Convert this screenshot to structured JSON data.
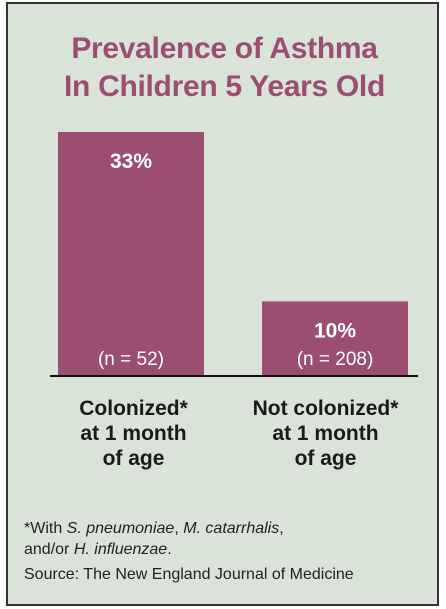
{
  "title_lines": [
    "Prevalence of Asthma",
    "In Children 5 Years Old"
  ],
  "chart_data": {
    "type": "bar",
    "title": "Prevalence of Asthma In Children 5 Years Old",
    "categories": [
      "Colonized* at 1 month of age",
      "Not colonized* at 1 month of age"
    ],
    "category_label_lines": [
      [
        "Colonized*",
        "at 1 month",
        "of age"
      ],
      [
        "Not colonized*",
        "at 1 month",
        "of age"
      ]
    ],
    "values": [
      33,
      10
    ],
    "value_labels": [
      "33%",
      "10%"
    ],
    "sample_labels": [
      "(n = 52)",
      "(n = 208)"
    ],
    "ylim": [
      0,
      33
    ],
    "grid": false,
    "xlabel": "",
    "ylabel": ""
  },
  "footnote": {
    "prefix": "*With ",
    "org1": "S. pneumoniae",
    "sep1": ", ",
    "org2": "M. catarrhalis",
    "sep2": ",",
    "mid": "and/or ",
    "org3": "H. influenzae",
    "end": "."
  },
  "source": "Source: The New England Journal of Medicine",
  "colors": {
    "background": "#d9e3d7",
    "bar": "#9b4d72",
    "title": "#9b4d72",
    "bar_text": "#ffffff",
    "border": "#333333"
  }
}
